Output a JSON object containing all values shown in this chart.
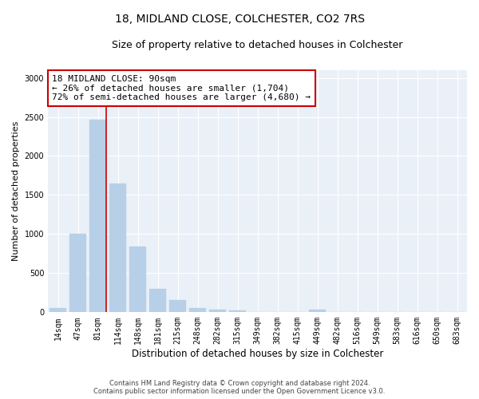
{
  "title": "18, MIDLAND CLOSE, COLCHESTER, CO2 7RS",
  "subtitle": "Size of property relative to detached houses in Colchester",
  "xlabel": "Distribution of detached houses by size in Colchester",
  "ylabel": "Number of detached properties",
  "footer_line1": "Contains HM Land Registry data © Crown copyright and database right 2024.",
  "footer_line2": "Contains public sector information licensed under the Open Government Licence v3.0.",
  "bar_labels": [
    "14sqm",
    "47sqm",
    "81sqm",
    "114sqm",
    "148sqm",
    "181sqm",
    "215sqm",
    "248sqm",
    "282sqm",
    "315sqm",
    "349sqm",
    "382sqm",
    "415sqm",
    "449sqm",
    "482sqm",
    "516sqm",
    "549sqm",
    "583sqm",
    "616sqm",
    "650sqm",
    "683sqm"
  ],
  "bar_values": [
    55,
    1000,
    2460,
    1650,
    840,
    300,
    155,
    55,
    35,
    20,
    0,
    0,
    0,
    30,
    0,
    0,
    0,
    0,
    0,
    0,
    0
  ],
  "bar_color": "#b8cfe8",
  "bar_edgecolor": "#b8cfe8",
  "vline_x_index": 2,
  "vline_color": "#cc0000",
  "annotation_line1": "18 MIDLAND CLOSE: 90sqm",
  "annotation_line2": "← 26% of detached houses are smaller (1,704)",
  "annotation_line3": "72% of semi-detached houses are larger (4,680) →",
  "annotation_box_facecolor": "#ffffff",
  "annotation_box_edgecolor": "#cc0000",
  "annotation_fontsize": 8,
  "ylim": [
    0,
    3100
  ],
  "yticks": [
    0,
    500,
    1000,
    1500,
    2000,
    2500,
    3000
  ],
  "background_color": "#eaf0f8",
  "grid_color": "#ffffff",
  "title_fontsize": 10,
  "subtitle_fontsize": 9,
  "xlabel_fontsize": 8.5,
  "ylabel_fontsize": 8,
  "tick_fontsize": 7
}
